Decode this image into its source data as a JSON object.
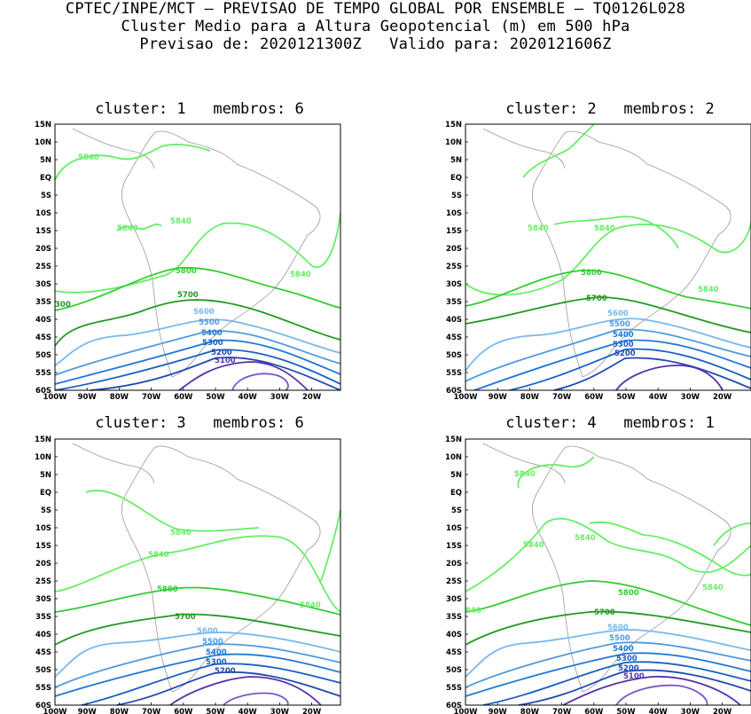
{
  "header": {
    "line1": "CPTEC/INPE/MCT — PREVISAO DE TEMPO GLOBAL POR ENSEMBLE — TQ0126L028",
    "line2": "Cluster Medio para a Altura Geopotencial (m) em 500 hPa",
    "line3": "Previsao de: 2020121300Z   Valido para: 2020121606Z"
  },
  "lat_ticks": [
    "15N",
    "10N",
    "5N",
    "EQ",
    "5S",
    "10S",
    "15S",
    "20S",
    "25S",
    "30S",
    "35S",
    "40S",
    "45S",
    "50S",
    "55S",
    "60S"
  ],
  "lon_ticks": [
    "100W",
    "90W",
    "80W",
    "70W",
    "60W",
    "50W",
    "40W",
    "30W",
    "20W"
  ],
  "colors": {
    "5840": "#66ee66",
    "5800": "#33cc33",
    "5700": "#229922",
    "5600": "#77b8ee",
    "5500": "#4f9ae0",
    "5400": "#2277d4",
    "5300": "#1a5fc0",
    "5200": "#1f4ab0",
    "5100": "#5533aa",
    "5000": "#7a55cc",
    "coast": "#999999"
  },
  "panels": [
    {
      "title": "cluster: 1   membros: 6",
      "labels": {
        "a": "5840",
        "b": "5840",
        "c": "5840",
        "d": "5840",
        "e": "5800",
        "f": "5700",
        "g": "5600",
        "h": "5500",
        "i": "5400",
        "j": "5300",
        "k": "5200",
        "l": "5100",
        "m": "300"
      }
    },
    {
      "title": "cluster: 2   membros: 2",
      "labels": {
        "a": "5840",
        "b": "5840",
        "c": "5840",
        "e": "5800",
        "f": "5700",
        "g": "5600",
        "h": "5500",
        "i": "5400",
        "j": "5300",
        "k": "5200"
      }
    },
    {
      "title": "cluster: 3   membros: 6",
      "labels": {
        "a": "5840",
        "b": "5840",
        "c": "5840",
        "e": "5800",
        "f": "5700",
        "g": "5600",
        "h": "5500",
        "i": "5400",
        "j": "5300",
        "k": "5200"
      }
    },
    {
      "title": "cluster: 4   membros: 1",
      "labels": {
        "a": "5840",
        "b": "5840",
        "c": "5840",
        "d": "5840",
        "e": "5800",
        "f": "5700",
        "g": "5600",
        "h": "5500",
        "i": "5400",
        "j": "5300",
        "k": "5200",
        "l": "5100",
        "m": "840"
      }
    }
  ]
}
